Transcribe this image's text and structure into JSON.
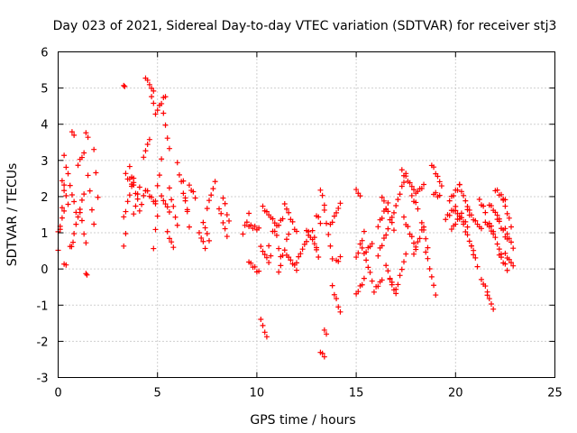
{
  "chart_data": {
    "type": "scatter",
    "title": "Day 023 of 2021, Sidereal Day-to-day VTEC variation (SDTVAR) for receiver stj3",
    "xlabel": "GPS time / hours",
    "ylabel": "SDTVAR / TECUs",
    "xlim": [
      0,
      25
    ],
    "ylim": [
      -3,
      6
    ],
    "xticks": [
      0,
      5,
      10,
      15,
      20,
      25
    ],
    "yticks": [
      -3,
      -2,
      -1,
      0,
      1,
      2,
      3,
      4,
      5,
      6
    ],
    "grid": true,
    "marker": "+",
    "color": "#ff0000",
    "segments": [
      {
        "x": [
          0.0,
          0.3
        ],
        "y": [
          0.5,
          2.3
        ]
      },
      {
        "x": [
          0.0,
          0.3
        ],
        "y": [
          1.0,
          1.6
        ]
      },
      {
        "x": [
          0.2,
          0.5
        ],
        "y": [
          2.4,
          1.8
        ]
      },
      {
        "x": [
          0.3,
          0.5
        ],
        "y": [
          3.1,
          2.6
        ]
      },
      {
        "x": [
          0.3,
          0.4
        ],
        "y": [
          0.1,
          0.15
        ]
      },
      {
        "x": [
          0.6,
          0.75
        ],
        "y": [
          0.6,
          0.7
        ]
      },
      {
        "x": [
          0.6,
          0.9
        ],
        "y": [
          2.3,
          1.6
        ]
      },
      {
        "x": [
          0.7,
          0.8
        ],
        "y": [
          3.8,
          3.7
        ]
      },
      {
        "x": [
          0.8,
          1.3
        ],
        "y": [
          1.0,
          2.1
        ]
      },
      {
        "x": [
          1.0,
          1.3
        ],
        "y": [
          2.9,
          3.2
        ]
      },
      {
        "x": [
          1.1,
          1.4
        ],
        "y": [
          1.6,
          0.7
        ]
      },
      {
        "x": [
          1.4,
          1.5
        ],
        "y": [
          3.8,
          3.6
        ]
      },
      {
        "x": [
          1.4,
          1.45
        ],
        "y": [
          -0.1,
          -0.2
        ]
      },
      {
        "x": [
          1.5,
          1.8
        ],
        "y": [
          2.6,
          1.2
        ]
      },
      {
        "x": [
          1.8,
          2.0
        ],
        "y": [
          3.3,
          2.0
        ]
      },
      {
        "x": [
          3.3,
          3.35
        ],
        "y": [
          5.05,
          5.05
        ]
      },
      {
        "x": [
          3.3,
          3.4
        ],
        "y": [
          0.6,
          1.0
        ]
      },
      {
        "x": [
          3.3,
          3.8
        ],
        "y": [
          1.4,
          2.5
        ]
      },
      {
        "x": [
          3.4,
          3.8
        ],
        "y": [
          2.6,
          2.3
        ]
      },
      {
        "x": [
          3.6,
          4.0
        ],
        "y": [
          2.8,
          1.9
        ]
      },
      {
        "x": [
          3.8,
          4.1
        ],
        "y": [
          1.5,
          2.3
        ]
      },
      {
        "x": [
          4.1,
          4.4
        ],
        "y": [
          1.6,
          2.2
        ]
      },
      {
        "x": [
          4.3,
          4.6
        ],
        "y": [
          3.1,
          3.6
        ]
      },
      {
        "x": [
          4.4,
          4.8
        ],
        "y": [
          5.3,
          4.9
        ]
      },
      {
        "x": [
          4.7,
          4.9
        ],
        "y": [
          4.8,
          4.3
        ]
      },
      {
        "x": [
          4.4,
          4.9
        ],
        "y": [
          2.2,
          1.8
        ]
      },
      {
        "x": [
          4.8,
          5.0
        ],
        "y": [
          0.6,
          1.5
        ]
      },
      {
        "x": [
          4.9,
          5.2
        ],
        "y": [
          1.9,
          3.0
        ]
      },
      {
        "x": [
          5.0,
          5.4
        ],
        "y": [
          4.4,
          4.8
        ]
      },
      {
        "x": [
          5.3,
          5.6
        ],
        "y": [
          4.3,
          3.3
        ]
      },
      {
        "x": [
          5.2,
          5.6
        ],
        "y": [
          2.0,
          1.6
        ]
      },
      {
        "x": [
          5.5,
          5.8
        ],
        "y": [
          1.0,
          0.6
        ]
      },
      {
        "x": [
          5.6,
          6.0
        ],
        "y": [
          2.2,
          1.2
        ]
      },
      {
        "x": [
          6.0,
          6.5
        ],
        "y": [
          2.9,
          1.6
        ]
      },
      {
        "x": [
          6.3,
          6.6
        ],
        "y": [
          2.4,
          1.2
        ]
      },
      {
        "x": [
          6.6,
          6.9
        ],
        "y": [
          2.3,
          2.0
        ]
      },
      {
        "x": [
          7.1,
          7.4
        ],
        "y": [
          1.0,
          0.6
        ]
      },
      {
        "x": [
          7.3,
          7.6
        ],
        "y": [
          1.3,
          0.8
        ]
      },
      {
        "x": [
          7.5,
          7.9
        ],
        "y": [
          1.7,
          2.4
        ]
      },
      {
        "x": [
          8.1,
          8.5
        ],
        "y": [
          1.7,
          0.9
        ]
      },
      {
        "x": [
          8.3,
          8.6
        ],
        "y": [
          2.0,
          1.3
        ]
      },
      {
        "x": [
          9.3,
          9.6
        ],
        "y": [
          1.0,
          1.5
        ]
      },
      {
        "x": [
          9.6,
          10.1
        ],
        "y": [
          1.2,
          1.1
        ]
      },
      {
        "x": [
          9.6,
          10.1
        ],
        "y": [
          0.2,
          -0.1
        ]
      },
      {
        "x": [
          10.2,
          10.5
        ],
        "y": [
          -1.4,
          -1.9
        ]
      },
      {
        "x": [
          10.2,
          10.6
        ],
        "y": [
          0.6,
          0.2
        ]
      },
      {
        "x": [
          10.3,
          10.9
        ],
        "y": [
          1.7,
          1.3
        ]
      },
      {
        "x": [
          10.6,
          10.7
        ],
        "y": [
          0.6,
          0.4
        ]
      },
      {
        "x": [
          10.8,
          11.3
        ],
        "y": [
          1.0,
          1.4
        ]
      },
      {
        "x": [
          11.0,
          11.2
        ],
        "y": [
          0.9,
          0.3
        ]
      },
      {
        "x": [
          11.1,
          11.6
        ],
        "y": [
          -0.1,
          1.0
        ]
      },
      {
        "x": [
          11.4,
          12.0
        ],
        "y": [
          1.8,
          1.0
        ]
      },
      {
        "x": [
          11.5,
          12.0
        ],
        "y": [
          0.4,
          0.0
        ]
      },
      {
        "x": [
          12.0,
          12.6
        ],
        "y": [
          0.2,
          0.9
        ]
      },
      {
        "x": [
          12.5,
          13.0
        ],
        "y": [
          1.1,
          0.6
        ]
      },
      {
        "x": [
          12.8,
          13.1
        ],
        "y": [
          1.1,
          0.3
        ]
      },
      {
        "x": [
          13.0,
          13.2
        ],
        "y": [
          1.5,
          1.3
        ]
      },
      {
        "x": [
          13.2,
          13.4
        ],
        "y": [
          2.2,
          1.8
        ]
      },
      {
        "x": [
          13.2,
          13.4
        ],
        "y": [
          -2.3,
          -2.4
        ]
      },
      {
        "x": [
          13.4,
          13.5
        ],
        "y": [
          -1.7,
          -1.8
        ]
      },
      {
        "x": [
          13.4,
          13.8
        ],
        "y": [
          1.6,
          0.3
        ]
      },
      {
        "x": [
          13.7,
          14.2
        ],
        "y": [
          1.2,
          1.8
        ]
      },
      {
        "x": [
          13.8,
          14.2
        ],
        "y": [
          -0.5,
          -1.2
        ]
      },
      {
        "x": [
          14.0,
          14.2
        ],
        "y": [
          0.2,
          0.3
        ]
      },
      {
        "x": [
          15.0,
          15.4
        ],
        "y": [
          0.3,
          1.0
        ]
      },
      {
        "x": [
          15.0,
          15.4
        ],
        "y": [
          -0.7,
          -0.3
        ]
      },
      {
        "x": [
          15.0,
          15.2
        ],
        "y": [
          2.2,
          2.0
        ]
      },
      {
        "x": [
          15.3,
          15.8
        ],
        "y": [
          0.6,
          -0.3
        ]
      },
      {
        "x": [
          15.5,
          15.8
        ],
        "y": [
          0.5,
          0.7
        ]
      },
      {
        "x": [
          15.9,
          16.3
        ],
        "y": [
          -0.6,
          -0.3
        ]
      },
      {
        "x": [
          16.1,
          16.6
        ],
        "y": [
          0.4,
          1.1
        ]
      },
      {
        "x": [
          16.1,
          16.6
        ],
        "y": [
          1.2,
          1.8
        ]
      },
      {
        "x": [
          16.3,
          16.9
        ],
        "y": [
          2.0,
          1.1
        ]
      },
      {
        "x": [
          16.5,
          16.8
        ],
        "y": [
          0.1,
          -0.4
        ]
      },
      {
        "x": [
          16.7,
          17.0
        ],
        "y": [
          -0.3,
          -0.7
        ]
      },
      {
        "x": [
          16.8,
          17.5
        ],
        "y": [
          1.4,
          2.6
        ]
      },
      {
        "x": [
          17.0,
          17.5
        ],
        "y": [
          -0.6,
          0.4
        ]
      },
      {
        "x": [
          17.3,
          17.9
        ],
        "y": [
          2.7,
          2.2
        ]
      },
      {
        "x": [
          17.4,
          18.0
        ],
        "y": [
          1.4,
          0.6
        ]
      },
      {
        "x": [
          17.8,
          18.1
        ],
        "y": [
          2.0,
          1.7
        ]
      },
      {
        "x": [
          17.9,
          18.4
        ],
        "y": [
          0.4,
          1.2
        ]
      },
      {
        "x": [
          18.0,
          18.4
        ],
        "y": [
          2.1,
          2.3
        ]
      },
      {
        "x": [
          18.3,
          18.6
        ],
        "y": [
          1.3,
          0.6
        ]
      },
      {
        "x": [
          18.5,
          19.0
        ],
        "y": [
          0.5,
          -0.7
        ]
      },
      {
        "x": [
          18.8,
          19.3
        ],
        "y": [
          2.9,
          2.3
        ]
      },
      {
        "x": [
          18.9,
          19.2
        ],
        "y": [
          2.1,
          2.0
        ]
      },
      {
        "x": [
          19.5,
          20.0
        ],
        "y": [
          1.4,
          1.7
        ]
      },
      {
        "x": [
          19.7,
          20.2
        ],
        "y": [
          1.9,
          2.3
        ]
      },
      {
        "x": [
          19.8,
          20.3
        ],
        "y": [
          1.1,
          1.5
        ]
      },
      {
        "x": [
          20.0,
          20.6
        ],
        "y": [
          1.6,
          1.2
        ]
      },
      {
        "x": [
          20.2,
          20.7
        ],
        "y": [
          2.3,
          1.6
        ]
      },
      {
        "x": [
          20.4,
          20.9
        ],
        "y": [
          1.2,
          0.5
        ]
      },
      {
        "x": [
          20.6,
          21.3
        ],
        "y": [
          1.6,
          1.1
        ]
      },
      {
        "x": [
          20.8,
          21.1
        ],
        "y": [
          0.6,
          0.1
        ]
      },
      {
        "x": [
          21.2,
          21.5
        ],
        "y": [
          1.9,
          1.6
        ]
      },
      {
        "x": [
          21.3,
          21.6
        ],
        "y": [
          -0.3,
          -0.6
        ]
      },
      {
        "x": [
          21.5,
          21.9
        ],
        "y": [
          1.3,
          1.0
        ]
      },
      {
        "x": [
          21.6,
          21.9
        ],
        "y": [
          -0.7,
          -1.1
        ]
      },
      {
        "x": [
          21.7,
          22.2
        ],
        "y": [
          1.8,
          1.4
        ]
      },
      {
        "x": [
          21.7,
          22.3
        ],
        "y": [
          1.3,
          0.4
        ]
      },
      {
        "x": [
          22.0,
          22.5
        ],
        "y": [
          2.2,
          1.9
        ]
      },
      {
        "x": [
          22.1,
          22.6
        ],
        "y": [
          1.4,
          0.8
        ]
      },
      {
        "x": [
          22.2,
          22.6
        ],
        "y": [
          0.4,
          0.0
        ]
      },
      {
        "x": [
          22.4,
          22.8
        ],
        "y": [
          1.9,
          1.2
        ]
      },
      {
        "x": [
          22.5,
          22.9
        ],
        "y": [
          1.1,
          0.6
        ]
      },
      {
        "x": [
          22.5,
          22.9
        ],
        "y": [
          0.4,
          0.1
        ]
      }
    ]
  }
}
